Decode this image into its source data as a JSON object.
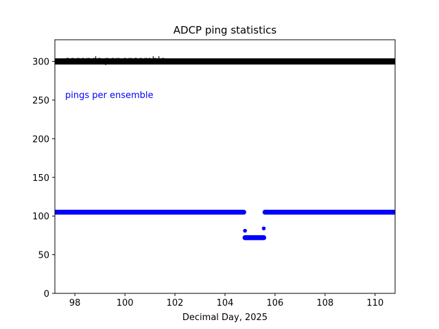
{
  "chart_data": {
    "type": "scatter",
    "title": "ADCP  ping statistics",
    "xlabel": "Decimal Day, 2025",
    "ylabel": "",
    "xlim": [
      97.2,
      110.8
    ],
    "ylim": [
      0,
      328
    ],
    "xticks": [
      98,
      100,
      102,
      104,
      106,
      108,
      110
    ],
    "yticks": [
      0,
      50,
      100,
      150,
      200,
      250,
      300
    ],
    "xtick_labels": [
      "98",
      "100",
      "102",
      "104",
      "106",
      "108",
      "110"
    ],
    "ytick_labels": [
      "0",
      "50",
      "100",
      "150",
      "200",
      "250",
      "300"
    ],
    "grid": false,
    "annotations": [
      {
        "text": "seconds per ensemble",
        "color": "#000000"
      },
      {
        "text": "pings per ensemble",
        "color": "#0000ff"
      }
    ],
    "series": [
      {
        "color": "#000000",
        "segments": [
          {
            "x_start": 97.2,
            "x_end": 110.8,
            "y": 300
          }
        ],
        "points": []
      },
      {
        "color": "#0000ff",
        "segments": [
          {
            "x_start": 97.2,
            "x_end": 104.75,
            "y": 105
          },
          {
            "x_start": 105.6,
            "x_end": 110.8,
            "y": 105
          },
          {
            "x_start": 104.8,
            "x_end": 105.55,
            "y": 72
          }
        ],
        "points": [
          {
            "x": 104.8,
            "y": 81
          },
          {
            "x": 105.55,
            "y": 84
          }
        ]
      }
    ]
  }
}
